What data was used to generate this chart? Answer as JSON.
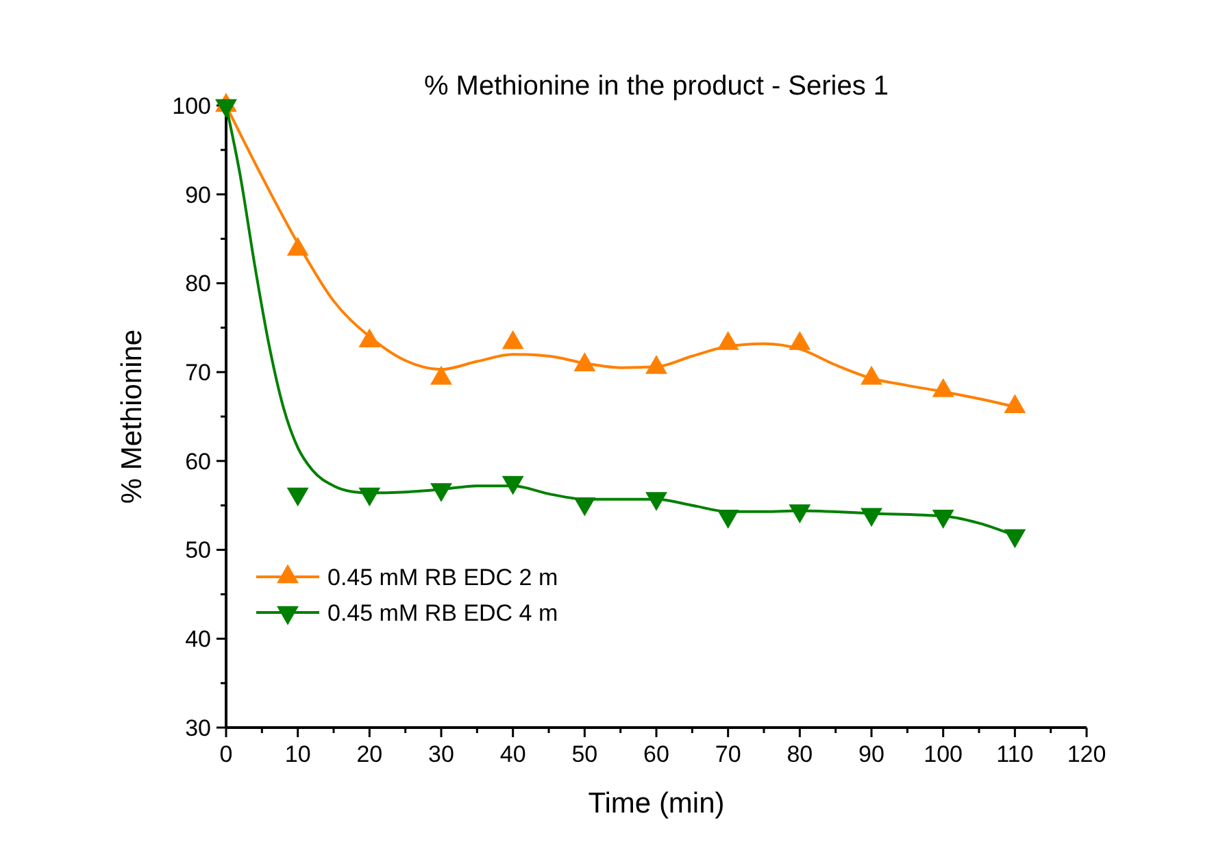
{
  "chart_data": {
    "type": "scatter",
    "title": "% Methionine in the product - Series 1",
    "xlabel": "Time (min)",
    "ylabel": "% Methionine",
    "xlim": [
      0,
      120
    ],
    "ylim": [
      30,
      100
    ],
    "xticks": [
      0,
      {
        "value": 5,
        "label": null
      },
      10,
      {
        "value": 15,
        "label": null
      },
      20,
      {
        "value": 25,
        "label": null
      },
      30,
      {
        "value": 35,
        "label": null
      },
      40,
      {
        "value": 45,
        "label": null
      },
      50,
      {
        "value": 55,
        "label": null
      },
      60,
      {
        "value": 65,
        "label": null
      },
      70,
      {
        "value": 75,
        "label": null
      },
      80,
      {
        "value": 85,
        "label": null
      },
      90,
      {
        "value": 95,
        "label": null
      },
      100,
      {
        "value": 105,
        "label": null
      },
      110,
      {
        "value": 115,
        "label": null
      },
      120
    ],
    "yticks": [
      30,
      {
        "value": 35,
        "label": null
      },
      40,
      {
        "value": 45,
        "label": null
      },
      50,
      {
        "value": 55,
        "label": null
      },
      60,
      {
        "value": 65,
        "label": null
      },
      70,
      {
        "value": 75,
        "label": null
      },
      80,
      {
        "value": 85,
        "label": null
      },
      90,
      {
        "value": 95,
        "label": null
      },
      100
    ],
    "grid": false,
    "legend": "bottom left",
    "series": [
      {
        "type": "line",
        "color": "#ff8000",
        "marker": "none",
        "x": [
          0,
          5,
          10,
          15,
          20,
          25,
          30,
          35,
          40,
          45,
          50,
          55,
          60,
          65,
          70,
          75,
          80,
          85,
          90,
          95,
          100,
          105,
          110
        ],
        "values": [
          100,
          92,
          84.5,
          78,
          74,
          71.3,
          70.3,
          71.2,
          72,
          71.8,
          71,
          70.5,
          70.6,
          71.8,
          72.9,
          73.2,
          72.6,
          70.8,
          69.3,
          68.5,
          67.8,
          67,
          66.1
        ]
      },
      {
        "type": "line",
        "color": "#008000",
        "marker": "none",
        "x": [
          0,
          2,
          4,
          6,
          8,
          10,
          12,
          15,
          18,
          20,
          25,
          30,
          35,
          40,
          45,
          50,
          55,
          60,
          65,
          70,
          75,
          80,
          90,
          100,
          105,
          110
        ],
        "values": [
          100,
          92,
          82,
          73,
          66,
          61.5,
          59,
          57.2,
          56.5,
          56.4,
          56.5,
          56.8,
          57.2,
          57.2,
          56.3,
          55.7,
          55.7,
          55.7,
          55,
          54.3,
          54.3,
          54.4,
          54.1,
          53.8,
          53,
          51.6
        ]
      },
      {
        "name": "0.45 mM RB EDC 2 m",
        "color": "#ff8000",
        "marker": "triangle",
        "x": [
          0,
          10,
          20,
          30,
          40,
          50,
          60,
          70,
          80,
          90,
          100,
          110
        ],
        "values": [
          100,
          83.8,
          73.5,
          69.3,
          73.3,
          70.8,
          70.5,
          73.2,
          73.2,
          69.3,
          67.9,
          66.1
        ]
      },
      {
        "name": "0.45 mM RB EDC 4 m",
        "color": "#008000",
        "marker": "triangle-down",
        "x": [
          0,
          10,
          20,
          30,
          40,
          50,
          60,
          70,
          80,
          90,
          100,
          110
        ],
        "values": [
          100,
          56.3,
          56.3,
          56.8,
          57.6,
          55.2,
          55.8,
          53.8,
          54.4,
          54.0,
          53.8,
          51.6
        ]
      }
    ]
  }
}
